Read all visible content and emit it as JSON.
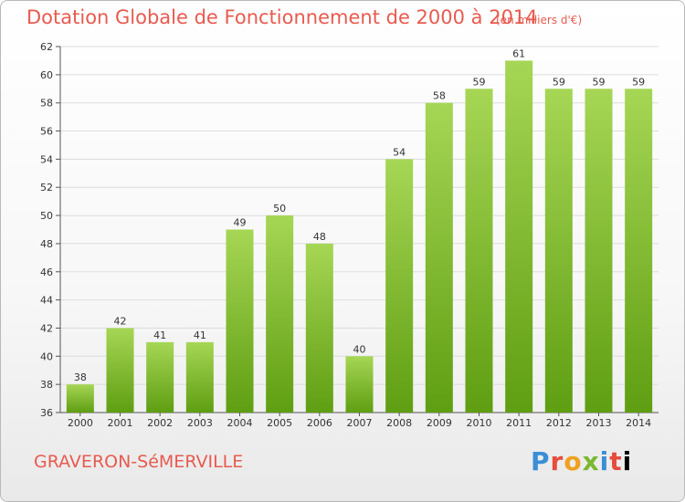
{
  "title": "Dotation Globale de Fonctionnement de 2000 à 2014",
  "unit_note": "(en milliers d'€)",
  "place_name": "GRAVERON-SéMERVILLE",
  "brand": "Proxiti",
  "colors": {
    "title": "#e85a4f",
    "bar_top": "#a6d655",
    "bar_bottom": "#5f9e12",
    "grid": "#dcdcdc"
  },
  "chart_data": {
    "type": "bar",
    "title": "Dotation Globale de Fonctionnement de 2000 à 2014",
    "subtitle": "(en milliers d'€)",
    "xlabel": "",
    "ylabel": "",
    "categories": [
      "2000",
      "2001",
      "2002",
      "2003",
      "2004",
      "2005",
      "2006",
      "2007",
      "2008",
      "2009",
      "2010",
      "2011",
      "2012",
      "2013",
      "2014"
    ],
    "values": [
      38,
      42,
      41,
      41,
      49,
      50,
      48,
      40,
      54,
      58,
      59,
      61,
      59,
      59,
      59
    ],
    "ylim": [
      36,
      62
    ],
    "yticks": [
      36,
      38,
      40,
      42,
      44,
      46,
      48,
      50,
      52,
      54,
      56,
      58,
      60,
      62
    ],
    "grid": true,
    "legend": "none"
  }
}
